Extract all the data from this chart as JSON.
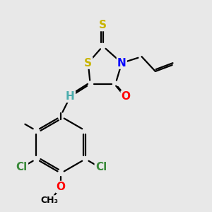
{
  "bg_color": "#e8e8e8",
  "atom_colors": {
    "S": "#c8b400",
    "N": "#0000ff",
    "O": "#ff0000",
    "Cl": "#3a8a3a",
    "H": "#4aacac",
    "C": "#000000"
  },
  "bond_color": "#000000",
  "bond_width": 1.6,
  "font_size_atom": 11,
  "font_size_small": 9
}
